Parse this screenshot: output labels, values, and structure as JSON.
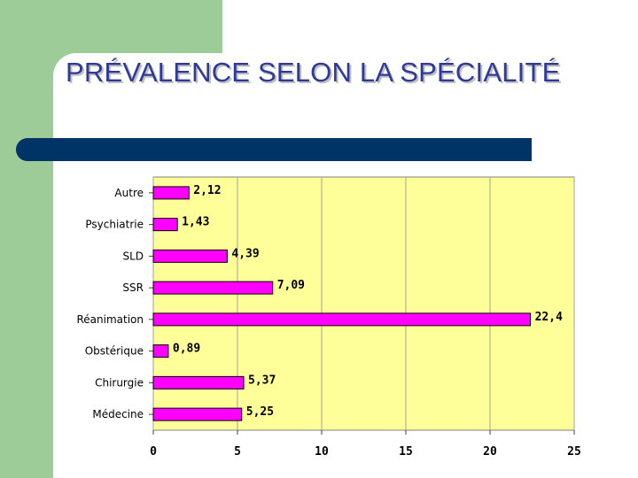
{
  "slide": {
    "title": "PRÉVALENCE SELON LA SPÉCIALITÉ",
    "colors": {
      "green": "#9dcc99",
      "title": "#2f3a96",
      "rule": "#003366"
    }
  },
  "chart_data": {
    "type": "bar",
    "orientation": "horizontal",
    "categories": [
      "Autre",
      "Psychiatrie",
      "SLD",
      "SSR",
      "Réanimation",
      "Obstérique",
      "Chirurgie",
      "Médecine"
    ],
    "values": [
      2.12,
      1.43,
      4.39,
      7.09,
      22.4,
      0.89,
      5.37,
      5.25
    ],
    "value_labels": [
      "2,12",
      "1,43",
      "4,39",
      "7,09",
      "22,4",
      "0,89",
      "5,37",
      "5,25"
    ],
    "xlim": [
      0,
      25
    ],
    "xticks": [
      "0",
      "5",
      "10",
      "15",
      "20",
      "25"
    ],
    "grid": true,
    "bar_color": "#ff00ff",
    "plot_background": "#ffff99"
  }
}
